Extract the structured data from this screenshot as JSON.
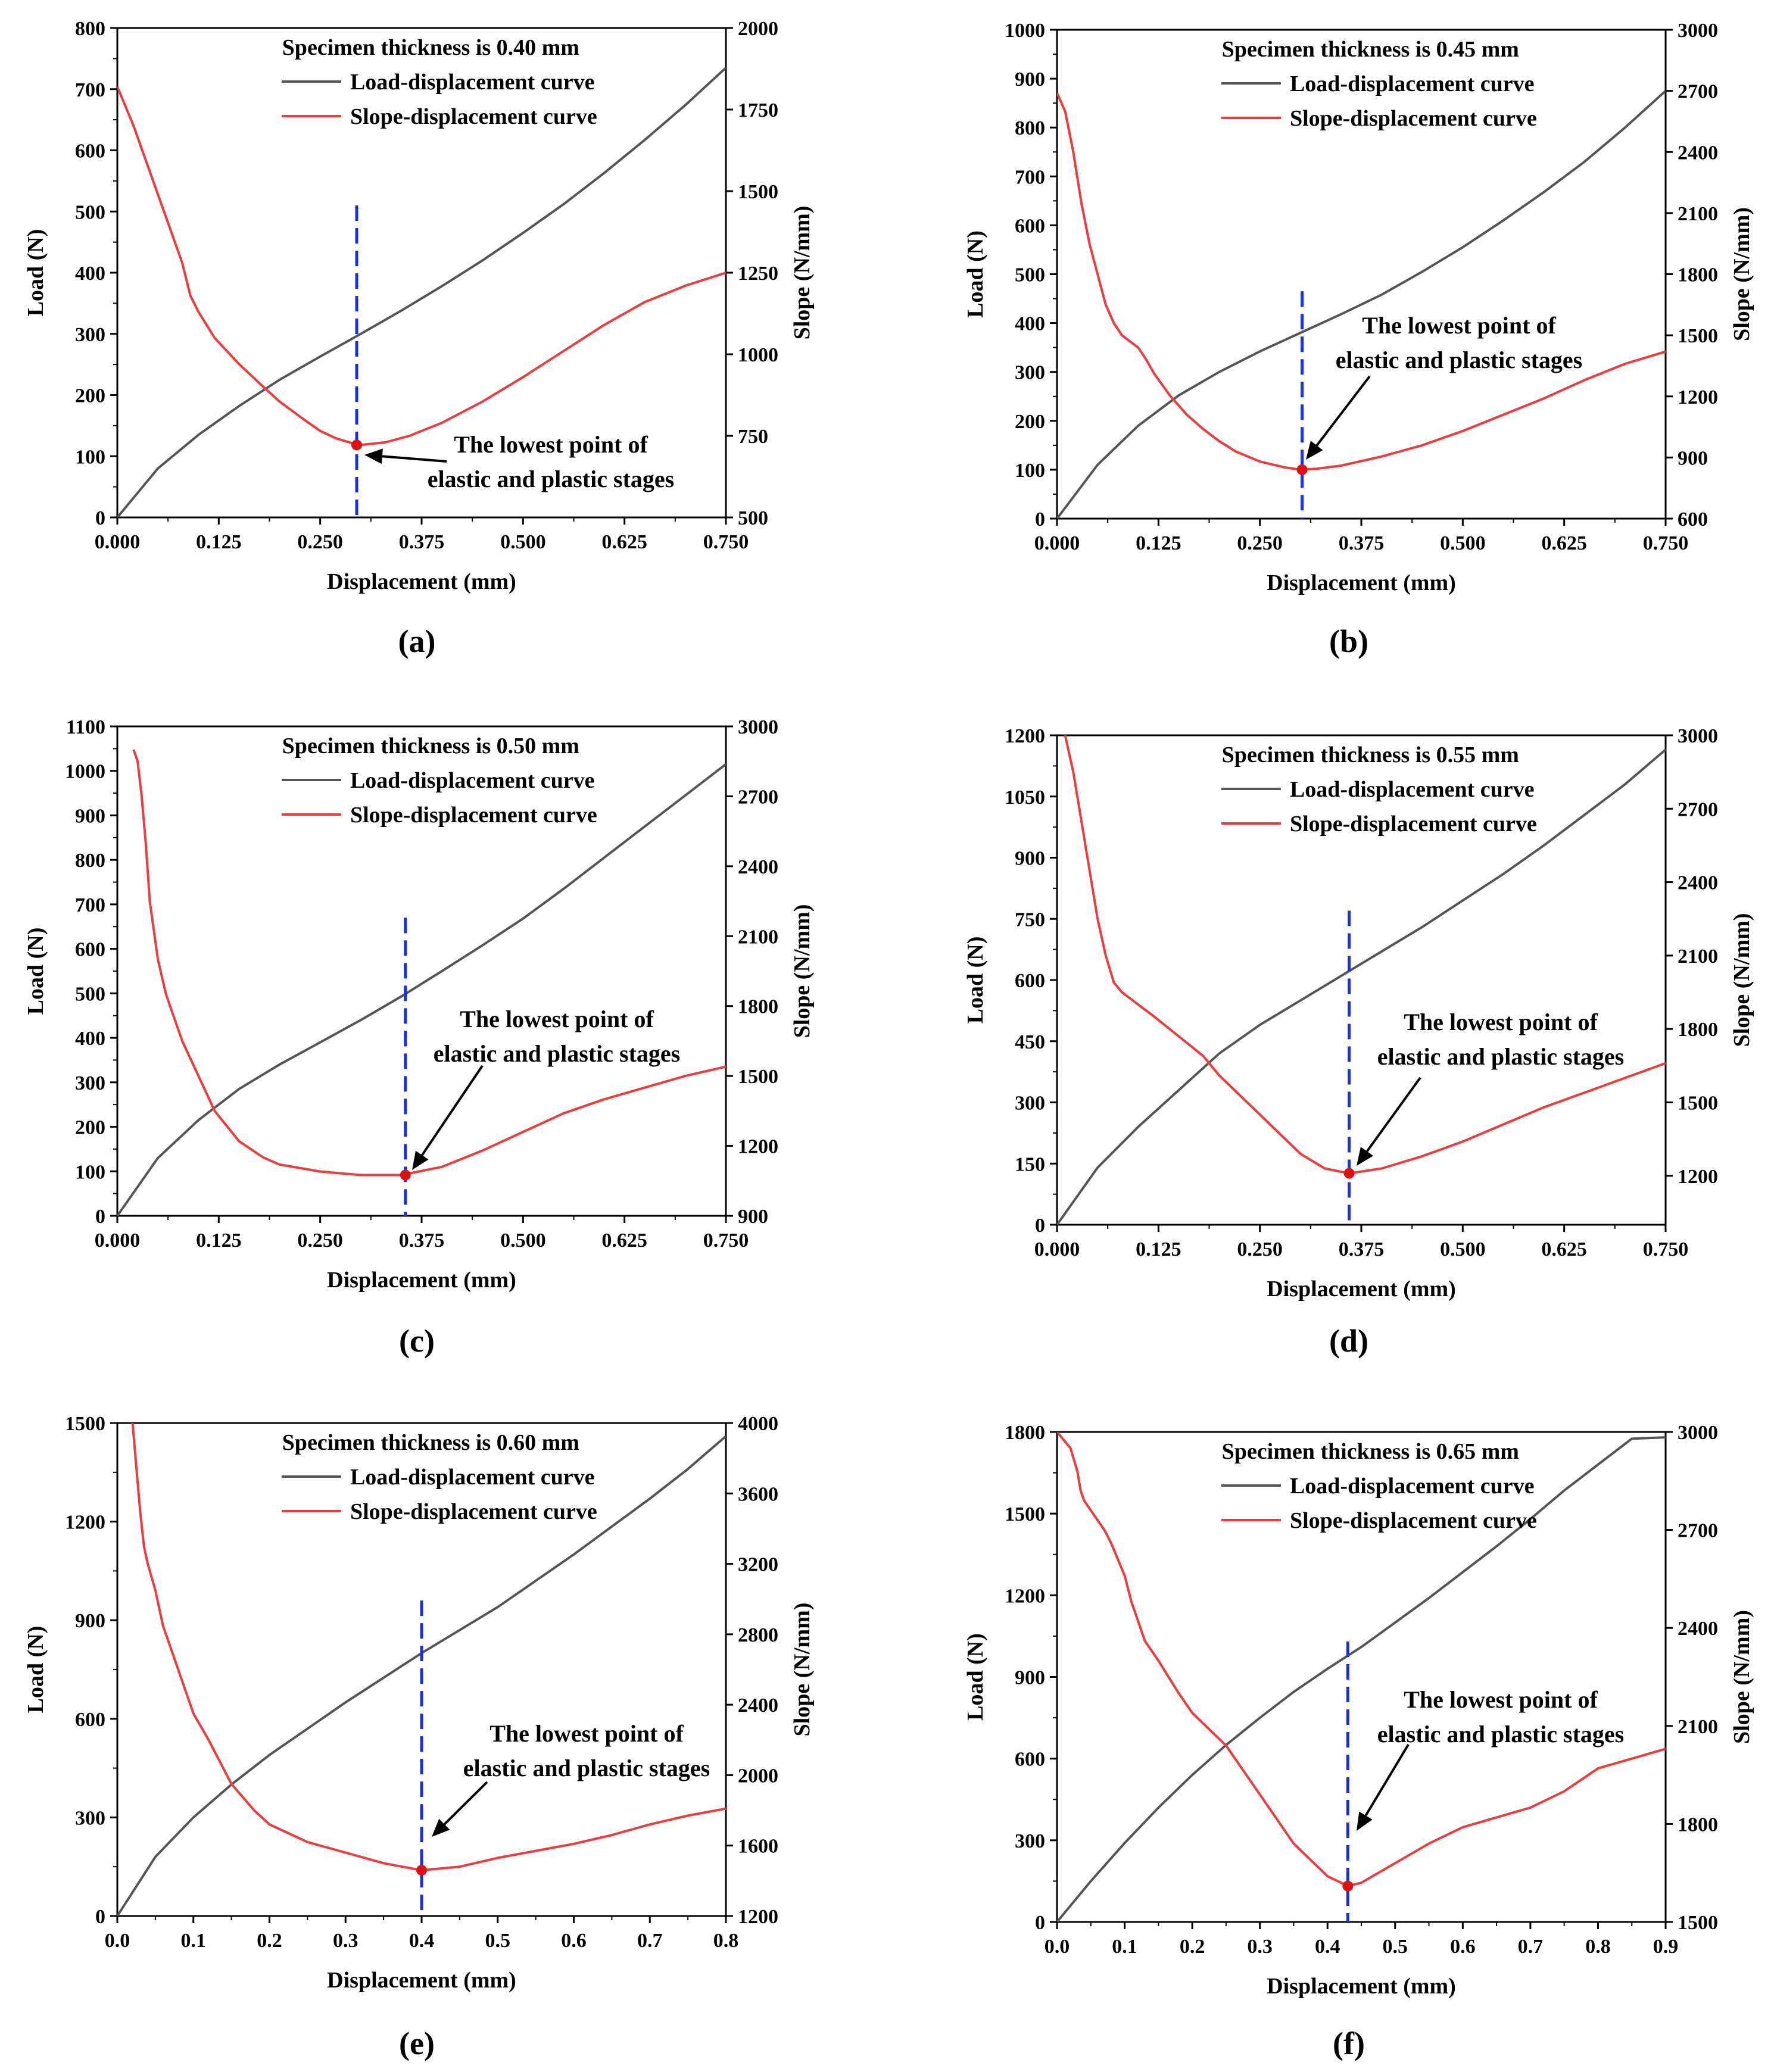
{
  "figure": {
    "xlabel": "Displacement (mm)",
    "ylabel_left": "Load (N)",
    "ylabel_right": "Slope (N/mm)",
    "legend": [
      "Load-displacement curve",
      "Slope-displacement curve"
    ],
    "annotation": [
      "The lowest point of",
      "elastic and plastic stages"
    ],
    "colors": {
      "load": "#555555",
      "slope": "#ee3b3b",
      "marker": "#dd1111",
      "guide": "#1a2fe0"
    }
  },
  "chart_data": [
    {
      "type": "line",
      "caption": "(a)",
      "title": "Specimen thickness is 0.40 mm",
      "xlim": [
        0,
        0.75
      ],
      "xticks": [
        "0.000",
        "0.125",
        "0.250",
        "0.375",
        "0.500",
        "0.625",
        "0.750"
      ],
      "ylim_left": [
        0,
        800
      ],
      "yticks_left": [
        "0",
        "100",
        "200",
        "300",
        "400",
        "500",
        "600",
        "700",
        "800"
      ],
      "ylim_right": [
        500,
        2000
      ],
      "yticks_right": [
        "500",
        "750",
        "1000",
        "1250",
        "1500",
        "1750",
        "2000"
      ],
      "load": {
        "x": [
          0,
          0.05,
          0.1,
          0.15,
          0.2,
          0.25,
          0.3,
          0.35,
          0.4,
          0.45,
          0.5,
          0.55,
          0.6,
          0.65,
          0.7,
          0.75
        ],
        "y": [
          0,
          80,
          135,
          182,
          225,
          263,
          300,
          338,
          378,
          420,
          465,
          512,
          563,
          617,
          674,
          735
        ]
      },
      "slope": {
        "x": [
          0,
          0.02,
          0.04,
          0.06,
          0.08,
          0.09,
          0.1,
          0.12,
          0.15,
          0.18,
          0.2,
          0.23,
          0.25,
          0.27,
          0.29,
          0.3,
          0.33,
          0.36,
          0.4,
          0.45,
          0.5,
          0.55,
          0.6,
          0.65,
          0.7,
          0.75
        ],
        "y": [
          1820,
          1700,
          1560,
          1420,
          1280,
          1180,
          1130,
          1050,
          970,
          900,
          855,
          800,
          765,
          742,
          727,
          722,
          730,
          750,
          790,
          855,
          930,
          1010,
          1090,
          1160,
          1210,
          1250
        ]
      },
      "guide_x": 0.295,
      "guide_top_load": 510,
      "min_point": {
        "x": 0.295,
        "slope": 722
      }
    },
    {
      "type": "line",
      "caption": "(b)",
      "title": "Specimen thickness is 0.45 mm",
      "xlim": [
        0,
        0.75
      ],
      "xticks": [
        "0.000",
        "0.125",
        "0.250",
        "0.375",
        "0.500",
        "0.625",
        "0.750"
      ],
      "ylim_left": [
        0,
        1000
      ],
      "yticks_left": [
        "0",
        "100",
        "200",
        "300",
        "400",
        "500",
        "600",
        "700",
        "800",
        "900",
        "1000"
      ],
      "ylim_right": [
        600,
        3000
      ],
      "yticks_right": [
        "600",
        "900",
        "1200",
        "1500",
        "1800",
        "2100",
        "2400",
        "2700",
        "3000"
      ],
      "load": {
        "x": [
          0,
          0.05,
          0.1,
          0.15,
          0.2,
          0.25,
          0.3,
          0.35,
          0.4,
          0.45,
          0.5,
          0.55,
          0.6,
          0.65,
          0.7,
          0.75
        ],
        "y": [
          0,
          110,
          190,
          252,
          300,
          342,
          380,
          418,
          458,
          505,
          555,
          610,
          668,
          730,
          800,
          875
        ]
      },
      "slope": {
        "x": [
          0,
          0.01,
          0.02,
          0.03,
          0.04,
          0.05,
          0.06,
          0.07,
          0.08,
          0.09,
          0.1,
          0.11,
          0.12,
          0.14,
          0.16,
          0.18,
          0.2,
          0.22,
          0.25,
          0.28,
          0.3,
          0.32,
          0.35,
          0.4,
          0.45,
          0.5,
          0.55,
          0.6,
          0.65,
          0.7,
          0.75
        ],
        "y": [
          2690,
          2600,
          2400,
          2150,
          1950,
          1800,
          1650,
          1560,
          1500,
          1470,
          1440,
          1380,
          1310,
          1200,
          1110,
          1040,
          980,
          930,
          880,
          852,
          840,
          845,
          860,
          905,
          960,
          1030,
          1110,
          1190,
          1280,
          1360,
          1420
        ]
      },
      "guide_x": 0.302,
      "guide_top_load": 465,
      "min_point": {
        "x": 0.302,
        "slope": 840
      }
    },
    {
      "type": "line",
      "caption": "(c)",
      "title": "Specimen thickness is 0.50 mm",
      "xlim": [
        0,
        0.75
      ],
      "xticks": [
        "0.000",
        "0.125",
        "0.250",
        "0.375",
        "0.500",
        "0.625",
        "0.750"
      ],
      "ylim_left": [
        0,
        1100
      ],
      "yticks_left": [
        "0",
        "100",
        "200",
        "300",
        "400",
        "500",
        "600",
        "700",
        "800",
        "900",
        "1000",
        "1100"
      ],
      "ylim_right": [
        900,
        3000
      ],
      "yticks_right": [
        "900",
        "1200",
        "1500",
        "1800",
        "2100",
        "2400",
        "2700",
        "3000"
      ],
      "load": {
        "x": [
          0,
          0.05,
          0.1,
          0.15,
          0.2,
          0.25,
          0.3,
          0.35,
          0.4,
          0.45,
          0.5,
          0.55,
          0.6,
          0.65,
          0.7,
          0.75
        ],
        "y": [
          0,
          130,
          215,
          285,
          340,
          390,
          440,
          493,
          550,
          608,
          668,
          735,
          805,
          875,
          945,
          1015
        ]
      },
      "slope": {
        "x": [
          0.02,
          0.025,
          0.03,
          0.035,
          0.04,
          0.05,
          0.06,
          0.08,
          0.1,
          0.12,
          0.15,
          0.18,
          0.2,
          0.25,
          0.3,
          0.35,
          0.4,
          0.45,
          0.5,
          0.55,
          0.6,
          0.65,
          0.7,
          0.75
        ],
        "y": [
          2900,
          2850,
          2700,
          2500,
          2250,
          2000,
          1850,
          1650,
          1500,
          1350,
          1220,
          1150,
          1120,
          1090,
          1075,
          1075,
          1110,
          1180,
          1260,
          1340,
          1400,
          1450,
          1500,
          1540
        ]
      },
      "guide_x": 0.355,
      "guide_top_load": 670,
      "min_point": {
        "x": 0.355,
        "slope": 1075
      }
    },
    {
      "type": "line",
      "caption": "(d)",
      "title": "Specimen thickness is 0.55 mm",
      "xlim": [
        0,
        0.75
      ],
      "xticks": [
        "0.000",
        "0.125",
        "0.250",
        "0.375",
        "0.500",
        "0.625",
        "0.750"
      ],
      "ylim_left": [
        0,
        1200
      ],
      "yticks_left": [
        "0",
        "150",
        "300",
        "450",
        "600",
        "750",
        "900",
        "1050",
        "1200"
      ],
      "ylim_right": [
        1000,
        3000
      ],
      "yticks_right": [
        "1200",
        "1500",
        "1800",
        "2100",
        "2400",
        "2700",
        "3000"
      ],
      "load": {
        "x": [
          0,
          0.05,
          0.1,
          0.15,
          0.2,
          0.25,
          0.3,
          0.35,
          0.4,
          0.45,
          0.5,
          0.55,
          0.6,
          0.65,
          0.7,
          0.75
        ],
        "y": [
          0,
          140,
          240,
          330,
          420,
          490,
          550,
          610,
          670,
          730,
          795,
          860,
          930,
          1005,
          1080,
          1165
        ]
      },
      "slope": {
        "x": [
          0.01,
          0.02,
          0.03,
          0.04,
          0.05,
          0.06,
          0.07,
          0.08,
          0.1,
          0.12,
          0.15,
          0.18,
          0.2,
          0.25,
          0.3,
          0.33,
          0.36,
          0.4,
          0.45,
          0.5,
          0.55,
          0.6,
          0.65,
          0.7,
          0.75
        ],
        "y": [
          3000,
          2850,
          2650,
          2450,
          2250,
          2100,
          1990,
          1950,
          1900,
          1850,
          1770,
          1690,
          1610,
          1450,
          1290,
          1230,
          1210,
          1230,
          1280,
          1340,
          1410,
          1480,
          1540,
          1600,
          1660
        ]
      },
      "guide_x": 0.36,
      "guide_top_load": 770,
      "min_point": {
        "x": 0.36,
        "slope": 1210
      }
    },
    {
      "type": "line",
      "caption": "(e)",
      "title": "Specimen thickness is 0.60 mm",
      "xlim": [
        0,
        0.8
      ],
      "xticks": [
        "0.0",
        "0.1",
        "0.2",
        "0.3",
        "0.4",
        "0.5",
        "0.6",
        "0.7",
        "0.8"
      ],
      "ylim_left": [
        0,
        1500
      ],
      "yticks_left": [
        "0",
        "300",
        "600",
        "900",
        "1200",
        "1500"
      ],
      "ylim_right": [
        1200,
        4000
      ],
      "yticks_right": [
        "1200",
        "1600",
        "2000",
        "2400",
        "2800",
        "3200",
        "3600",
        "4000"
      ],
      "load": {
        "x": [
          0,
          0.05,
          0.1,
          0.15,
          0.2,
          0.25,
          0.3,
          0.35,
          0.4,
          0.45,
          0.5,
          0.55,
          0.6,
          0.65,
          0.7,
          0.75,
          0.8
        ],
        "y": [
          0,
          180,
          300,
          400,
          490,
          570,
          650,
          725,
          800,
          870,
          940,
          1020,
          1100,
          1185,
          1270,
          1360,
          1460
        ]
      },
      "slope": {
        "x": [
          0.02,
          0.025,
          0.03,
          0.035,
          0.04,
          0.05,
          0.06,
          0.08,
          0.1,
          0.12,
          0.15,
          0.18,
          0.2,
          0.25,
          0.3,
          0.35,
          0.4,
          0.45,
          0.5,
          0.55,
          0.6,
          0.65,
          0.7,
          0.75,
          0.8
        ],
        "y": [
          4000,
          3750,
          3500,
          3300,
          3200,
          3050,
          2850,
          2600,
          2350,
          2200,
          1950,
          1800,
          1720,
          1620,
          1560,
          1500,
          1460,
          1480,
          1530,
          1570,
          1610,
          1660,
          1720,
          1770,
          1810
        ]
      },
      "guide_x": 0.4,
      "guide_top_load": 960,
      "min_point": {
        "x": 0.4,
        "slope": 1460
      }
    },
    {
      "type": "line",
      "caption": "(f)",
      "title": "Specimen thickness is 0.65 mm",
      "xlim": [
        0,
        0.9
      ],
      "xticks": [
        "0.0",
        "0.1",
        "0.2",
        "0.3",
        "0.4",
        "0.5",
        "0.6",
        "0.7",
        "0.8",
        "0.9"
      ],
      "ylim_left": [
        0,
        1800
      ],
      "yticks_left": [
        "0",
        "300",
        "600",
        "900",
        "1200",
        "1500",
        "1800"
      ],
      "ylim_right": [
        1500,
        3000
      ],
      "yticks_right": [
        "1500",
        "1800",
        "2100",
        "2400",
        "2700",
        "3000"
      ],
      "load": {
        "x": [
          0,
          0.05,
          0.1,
          0.15,
          0.2,
          0.25,
          0.3,
          0.35,
          0.4,
          0.45,
          0.5,
          0.55,
          0.6,
          0.65,
          0.7,
          0.75,
          0.8,
          0.85,
          0.9
        ],
        "y": [
          0,
          150,
          290,
          420,
          540,
          650,
          750,
          845,
          930,
          1010,
          1100,
          1190,
          1285,
          1380,
          1480,
          1585,
          1680,
          1775,
          1780
        ]
      },
      "slope": {
        "x": [
          0,
          0.02,
          0.03,
          0.035,
          0.04,
          0.05,
          0.06,
          0.07,
          0.08,
          0.1,
          0.11,
          0.12,
          0.13,
          0.15,
          0.18,
          0.2,
          0.25,
          0.3,
          0.35,
          0.4,
          0.43,
          0.45,
          0.5,
          0.55,
          0.6,
          0.65,
          0.7,
          0.75,
          0.8,
          0.85,
          0.9
        ],
        "y": [
          3000,
          2950,
          2880,
          2820,
          2790,
          2760,
          2730,
          2700,
          2660,
          2560,
          2480,
          2420,
          2360,
          2300,
          2200,
          2140,
          2040,
          1890,
          1740,
          1640,
          1610,
          1620,
          1680,
          1740,
          1790,
          1820,
          1850,
          1900,
          1970,
          2000,
          2030
        ]
      },
      "guide_x": 0.43,
      "guide_top_load": 1030,
      "min_point": {
        "x": 0.43,
        "slope": 1610
      }
    }
  ]
}
